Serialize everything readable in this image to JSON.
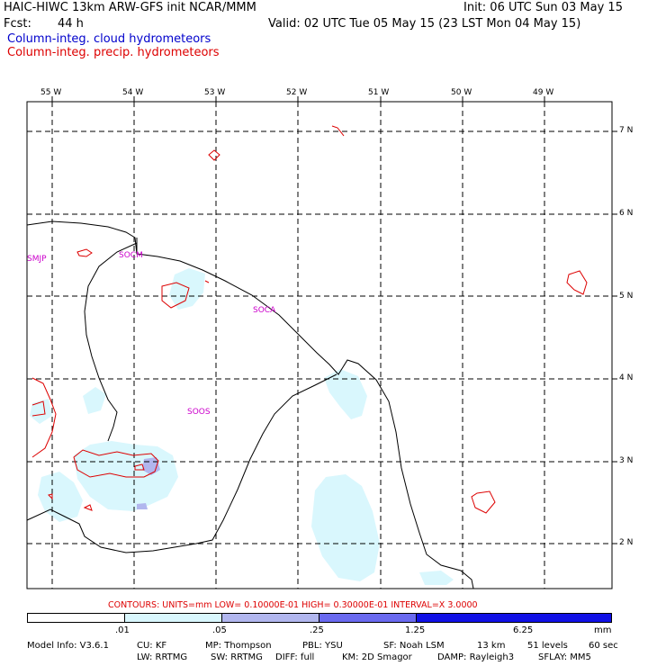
{
  "header": {
    "title": "HAIC-HIWC 13km ARW-GFS init   NCAR/MMM",
    "init": "Init: 06 UTC Sun 03 May 15",
    "fcst_label": "Fcst:",
    "fcst_value": "44 h",
    "valid": "Valid: 02 UTC Tue 05 May 15 (23 LST Mon 04 May 15)"
  },
  "legend": {
    "cloud": "Column-integ. cloud hydrometeors",
    "precip": "Column-integ. precip. hydrometeors",
    "cloud_color": "#0000cc",
    "precip_color": "#dd0000"
  },
  "map": {
    "lon_labels": [
      "55 W",
      "54 W",
      "53 W",
      "52 W",
      "51 W",
      "50 W",
      "49 W"
    ],
    "lat_labels": [
      "7 N",
      "6 N",
      "5 N",
      "4 N",
      "3 N",
      "2 N"
    ],
    "stations": [
      "SMJP",
      "SOCM",
      "SOCA",
      "SOOS"
    ]
  },
  "contours": "CONTOURS:  UNITS=mm  LOW= 0.10000E-01  HIGH= 0.30000E-01  INTERVAL=X  3.0000",
  "colorbar": {
    "labels": [
      ".01",
      ".05",
      ".25",
      "1.25",
      "6.25"
    ],
    "units": "mm",
    "colors": [
      "#ffffff",
      "#d9f7fd",
      "#b1b6ee",
      "#6a6af0",
      "#1010e6"
    ]
  },
  "footer": {
    "line1": [
      "Model Info: V3.6.1",
      "CU: KF",
      "MP: Thompson",
      "PBL: YSU",
      "SF: Noah LSM",
      "13 km",
      "51 levels",
      "60 sec"
    ],
    "line2": [
      "LW: RRTMG",
      "SW: RRTMG",
      "DIFF: full",
      "KM: 2D Smagor",
      "DAMP: Rayleigh3",
      "SFLAY: MM5"
    ]
  }
}
